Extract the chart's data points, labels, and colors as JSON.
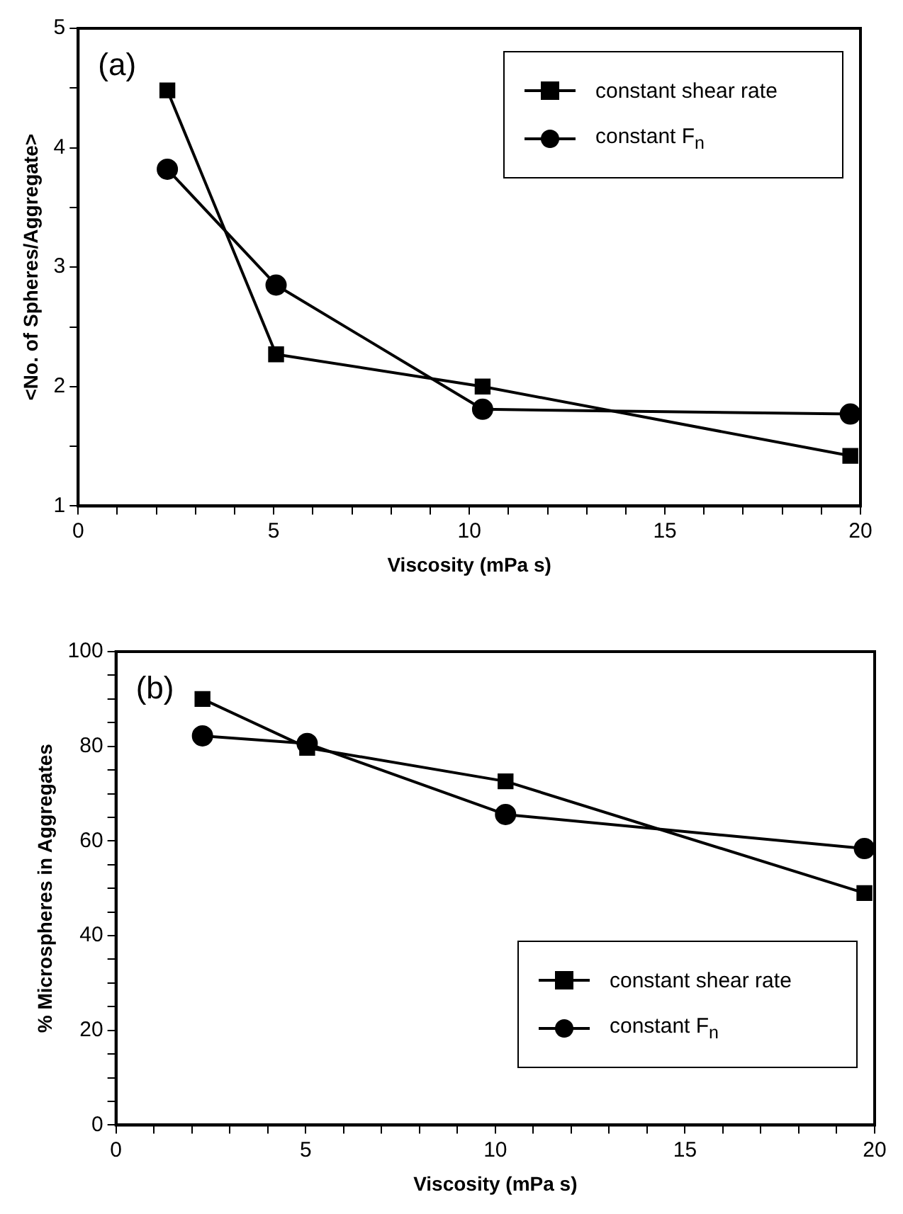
{
  "chart_data": [
    {
      "type": "line",
      "xlabel": "Viscosity (mPa s)",
      "ylabel": "<No. of Spheres/Aggregate>",
      "annotations": [
        "(a)"
      ],
      "xlim": [
        0,
        20
      ],
      "ylim": [
        1,
        5
      ],
      "xticks": [
        0,
        {
          "value": 1,
          "label": null
        },
        {
          "value": 2,
          "label": null
        },
        {
          "value": 3,
          "label": null
        },
        {
          "value": 4,
          "label": null
        },
        5,
        {
          "value": 6,
          "label": null
        },
        {
          "value": 7,
          "label": null
        },
        {
          "value": 8,
          "label": null
        },
        {
          "value": 9,
          "label": null
        },
        10,
        {
          "value": 11,
          "label": null
        },
        {
          "value": 12,
          "label": null
        },
        {
          "value": 13,
          "label": null
        },
        {
          "value": 14,
          "label": null
        },
        15,
        {
          "value": 16,
          "label": null
        },
        {
          "value": 17,
          "label": null
        },
        {
          "value": 18,
          "label": null
        },
        {
          "value": 19,
          "label": null
        },
        20
      ],
      "yticks": [
        1,
        {
          "value": 1.5,
          "label": null
        },
        2,
        {
          "value": 2.5,
          "label": null
        },
        3,
        {
          "value": 3.5,
          "label": null
        },
        4,
        {
          "value": 4.5,
          "label": null
        },
        5
      ],
      "grid": false,
      "legend": "top right",
      "line_style": "solid",
      "series": [
        {
          "name": "constant shear rate",
          "color": "#000000",
          "marker": "square",
          "x": [
            2.28,
            5.06,
            10.34,
            19.74
          ],
          "values": [
            4.48,
            2.27,
            2.0,
            1.42
          ]
        },
        {
          "name": "constant F$_{n}$",
          "color": "#000000",
          "marker": "circle",
          "x": [
            2.28,
            5.06,
            10.34,
            19.74
          ],
          "values": [
            3.82,
            2.85,
            1.81,
            1.77
          ]
        }
      ]
    },
    {
      "type": "line",
      "xlabel": "Viscosity (mPa s)",
      "ylabel": "% Microspheres in Aggregates",
      "annotations": [
        "(b)"
      ],
      "xlim": [
        0,
        20
      ],
      "ylim": [
        0,
        100
      ],
      "xticks": [
        0,
        {
          "value": 1,
          "label": null
        },
        {
          "value": 2,
          "label": null
        },
        {
          "value": 3,
          "label": null
        },
        {
          "value": 4,
          "label": null
        },
        5,
        {
          "value": 6,
          "label": null
        },
        {
          "value": 7,
          "label": null
        },
        {
          "value": 8,
          "label": null
        },
        {
          "value": 9,
          "label": null
        },
        10,
        {
          "value": 11,
          "label": null
        },
        {
          "value": 12,
          "label": null
        },
        {
          "value": 13,
          "label": null
        },
        {
          "value": 14,
          "label": null
        },
        15,
        {
          "value": 16,
          "label": null
        },
        {
          "value": 17,
          "label": null
        },
        {
          "value": 18,
          "label": null
        },
        {
          "value": 19,
          "label": null
        },
        20
      ],
      "yticks": [
        0,
        {
          "value": 5,
          "label": null
        },
        {
          "value": 10,
          "label": null
        },
        {
          "value": 15,
          "label": null
        },
        20,
        {
          "value": 25,
          "label": null
        },
        {
          "value": 30,
          "label": null
        },
        {
          "value": 35,
          "label": null
        },
        40,
        {
          "value": 45,
          "label": null
        },
        {
          "value": 50,
          "label": null
        },
        {
          "value": 55,
          "label": null
        },
        60,
        {
          "value": 65,
          "label": null
        },
        {
          "value": 70,
          "label": null
        },
        {
          "value": 75,
          "label": null
        },
        80,
        {
          "value": 85,
          "label": null
        },
        {
          "value": 90,
          "label": null
        },
        {
          "value": 95,
          "label": null
        },
        100
      ],
      "grid": false,
      "legend": "bottom right",
      "line_style": "solid",
      "series": [
        {
          "name": "constant shear rate",
          "color": "#000000",
          "marker": "square",
          "x": [
            2.28,
            5.04,
            10.27,
            19.73
          ],
          "values": [
            90.0,
            79.7,
            72.6,
            49.0
          ]
        },
        {
          "name": "constant F$_{n}$",
          "color": "#000000",
          "marker": "circle",
          "x": [
            2.28,
            5.04,
            10.27,
            19.73
          ],
          "values": [
            82.2,
            80.6,
            65.6,
            58.4
          ]
        }
      ]
    }
  ]
}
